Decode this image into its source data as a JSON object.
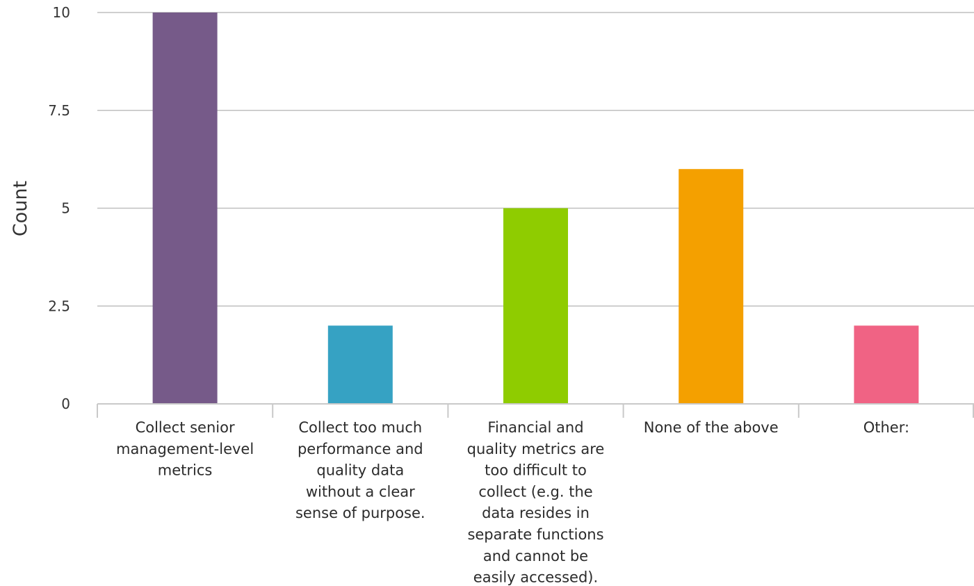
{
  "chart_data": {
    "type": "bar",
    "ylabel": "Count",
    "xlabel": "",
    "ylim": [
      0,
      10
    ],
    "yticks": [
      "0",
      "2.5",
      "5",
      "7.5",
      "10"
    ],
    "ytick_values": [
      0,
      2.5,
      5,
      7.5,
      10
    ],
    "grid": true,
    "categories": [
      "Collect senior management-level metrics",
      "Collect too much performance and quality data without a clear sense of purpose.",
      "Financial and quality metrics are too difficult to collect (e.g. the data resides in separate functions and cannot be easily accessed).",
      "None of the above",
      "Other:"
    ],
    "category_lines": [
      [
        "Collect senior",
        "management-level",
        "metrics"
      ],
      [
        "Collect too much",
        "performance and",
        "quality data",
        "without a clear",
        "sense of purpose."
      ],
      [
        "Financial and",
        "quality metrics are",
        "too difficult to",
        "collect (e.g. the",
        "data resides in",
        "separate functions",
        "and cannot be",
        "easily accessed)."
      ],
      [
        "None of the above"
      ],
      [
        "Other:"
      ]
    ],
    "values": [
      10,
      2,
      5,
      6,
      2
    ],
    "colors": [
      "#765a89",
      "#36a2c3",
      "#8fcc00",
      "#f4a000",
      "#f06384"
    ],
    "grid_color": "#bfbfbf",
    "axis_color": "#c9c9c9"
  }
}
